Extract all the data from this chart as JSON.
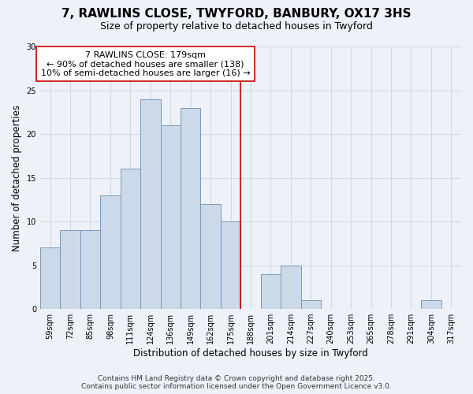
{
  "title": "7, RAWLINS CLOSE, TWYFORD, BANBURY, OX17 3HS",
  "subtitle": "Size of property relative to detached houses in Twyford",
  "xlabel": "Distribution of detached houses by size in Twyford",
  "ylabel": "Number of detached properties",
  "bar_labels": [
    "59sqm",
    "72sqm",
    "85sqm",
    "98sqm",
    "111sqm",
    "124sqm",
    "136sqm",
    "149sqm",
    "162sqm",
    "175sqm",
    "188sqm",
    "201sqm",
    "214sqm",
    "227sqm",
    "240sqm",
    "253sqm",
    "265sqm",
    "278sqm",
    "291sqm",
    "304sqm",
    "317sqm"
  ],
  "bar_values": [
    7,
    9,
    9,
    13,
    16,
    24,
    21,
    23,
    12,
    10,
    0,
    4,
    5,
    1,
    0,
    0,
    0,
    0,
    0,
    1,
    0
  ],
  "bar_color": "#ccd9e8",
  "bar_edgecolor": "#7799bb",
  "vline_x": 9.5,
  "vline_color": "#cc0000",
  "annotation_text": "7 RAWLINS CLOSE: 179sqm\n← 90% of detached houses are smaller (138)\n10% of semi-detached houses are larger (16) →",
  "annotation_box_edgecolor": "#cc0000",
  "ylim": [
    0,
    30
  ],
  "yticks": [
    0,
    5,
    10,
    15,
    20,
    25,
    30
  ],
  "footer_line1": "Contains HM Land Registry data © Crown copyright and database right 2025.",
  "footer_line2": "Contains public sector information licensed under the Open Government Licence v3.0.",
  "bg_color": "#eef2f8",
  "grid_color": "#d0d8e4",
  "title_fontsize": 11,
  "subtitle_fontsize": 9,
  "label_fontsize": 8.5,
  "tick_fontsize": 7,
  "footer_fontsize": 6.5,
  "annotation_fontsize": 8
}
